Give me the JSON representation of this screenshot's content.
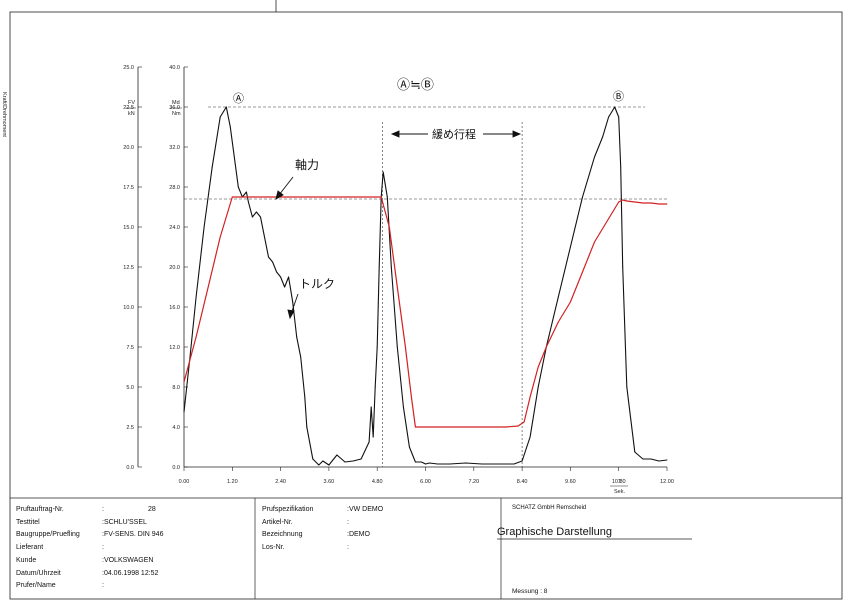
{
  "chart_data": {
    "type": "line",
    "x_ticks": [
      "0.00",
      "1.20",
      "2.40",
      "3.60",
      "4.80",
      "6.00",
      "7.20",
      "8.40",
      "9.60",
      "10.80",
      "12.00"
    ],
    "xlim": [
      0,
      12
    ],
    "left_axis_ticks": [
      "0.0",
      "2.5",
      "5.0",
      "7.5",
      "10.0",
      "12.5",
      "15.0",
      "17.5",
      "20.0",
      "22.5",
      "25.0"
    ],
    "left_ylim": [
      0,
      25
    ],
    "left_unit": "FV",
    "left_unit2": "kN",
    "right_axis_ticks": [
      "0.0",
      "4.0",
      "8.0",
      "12.0",
      "16.0",
      "20.0",
      "24.0",
      "28.0",
      "32.0",
      "36.0",
      "40.0"
    ],
    "right_ylim": [
      0,
      40
    ],
    "right_unit": "Md",
    "right_unit2": "Nm",
    "x_unit": "T",
    "x_unit2": "Sek.",
    "vertical_side_label": "Kraft/Drehmoment",
    "series": [
      {
        "name": "トルク",
        "color": "#111111",
        "axis": "right",
        "x": [
          0.0,
          0.15,
          0.3,
          0.5,
          0.7,
          0.9,
          1.05,
          1.15,
          1.25,
          1.35,
          1.45,
          1.55,
          1.6,
          1.7,
          1.8,
          1.9,
          2.0,
          2.1,
          2.2,
          2.3,
          2.4,
          2.5,
          2.6,
          2.7,
          2.8,
          2.9,
          3.0,
          3.05,
          3.2,
          3.35,
          3.45,
          3.6,
          3.8,
          4.0,
          4.2,
          4.4,
          4.6,
          4.65,
          4.7,
          4.75,
          4.8,
          4.85,
          4.9,
          4.95,
          5.05,
          5.15,
          5.3,
          5.45,
          5.6,
          5.75,
          5.9,
          6.0,
          6.1,
          6.3,
          6.6,
          7.0,
          7.4,
          7.8,
          8.2,
          8.4,
          8.6,
          8.8,
          9.0,
          9.3,
          9.6,
          9.9,
          10.2,
          10.4,
          10.55,
          10.7,
          10.8,
          10.85,
          10.9,
          11.0,
          11.2,
          11.4,
          11.6,
          11.8,
          12.0
        ],
        "y": [
          5.5,
          11,
          17,
          24,
          30,
          35,
          36.0,
          34,
          31,
          28,
          27,
          27.5,
          26.5,
          25,
          25.5,
          25,
          23,
          21,
          20.5,
          19.5,
          19,
          18,
          19,
          16.5,
          13,
          11,
          7,
          4,
          0.8,
          0.2,
          0.6,
          0.2,
          1.2,
          0.5,
          0.6,
          0.8,
          2.5,
          6,
          3,
          8,
          12,
          20,
          27,
          29.5,
          27,
          20,
          12,
          6,
          2,
          0.5,
          0.5,
          0.3,
          0.4,
          0.3,
          0.3,
          0.4,
          0.3,
          0.3,
          0.3,
          0.6,
          3,
          8,
          12,
          17,
          22,
          27,
          31,
          33,
          35,
          36,
          35,
          30,
          20,
          8,
          1.5,
          0.8,
          0.8,
          0.6,
          0.7
        ]
      },
      {
        "name": "軸力",
        "color": "#d42020",
        "axis": "right",
        "x": [
          0.0,
          0.3,
          0.6,
          0.9,
          1.2,
          1.35,
          1.6,
          2.0,
          2.5,
          3.0,
          3.5,
          4.0,
          4.5,
          4.9,
          5.1,
          5.3,
          5.5,
          5.65,
          5.75,
          5.8,
          6.0,
          6.5,
          7.0,
          7.5,
          8.0,
          8.3,
          8.45,
          8.6,
          8.8,
          9.0,
          9.3,
          9.6,
          9.9,
          10.2,
          10.5,
          10.8,
          10.9,
          11.0,
          11.2,
          11.4,
          11.6,
          11.8,
          12.0
        ],
        "y": [
          8.5,
          13,
          18,
          23,
          27,
          27,
          27,
          27,
          27,
          27,
          27,
          27,
          27,
          27,
          24,
          18,
          12,
          7,
          4,
          4,
          4,
          4,
          4,
          4,
          4,
          4.1,
          4.5,
          7,
          10,
          12,
          14.5,
          16.5,
          19.5,
          22.5,
          24.5,
          26.5,
          26.7,
          26.6,
          26.5,
          26.4,
          26.4,
          26.3,
          26.3
        ]
      }
    ],
    "annotations": {
      "torque_label": "トルク",
      "force_label": "軸力",
      "loosen_label": "緩め行程",
      "peak_a": "Ⓐ",
      "peak_b": "Ⓑ",
      "peak_eq": "Ⓐ≒Ⓑ"
    },
    "reference_lines": {
      "peak_level_right": 36.0,
      "force_level_right": 26.8,
      "dividers_x": [
        4.93,
        8.4
      ]
    }
  },
  "footer": {
    "fields": [
      {
        "label": "Pruftauftrag-Nr.",
        "colon": ":",
        "value": "28"
      },
      {
        "label": "Testtitel",
        "colon": "",
        "value": ":SCHLU'SSEL"
      },
      {
        "label": "Baugruppe/Pruefling",
        "colon": "",
        "value": ":FV-SENS. DIN 946"
      },
      {
        "label": "Lieferant",
        "colon": ":",
        "value": ""
      },
      {
        "label": "Kunde",
        "colon": "",
        "value": ":VOLKSWAGEN"
      },
      {
        "label": "Datum/Uhrzeit",
        "colon": "",
        "value": ":04.06.1998 12:52"
      },
      {
        "label": "Prufer/Name",
        "colon": ":",
        "value": ""
      }
    ],
    "spec_fields": [
      {
        "label": "Prufspezifikation",
        "value": ":VW DEMO"
      },
      {
        "label": "Artikel-Nr.",
        "value": ":"
      },
      {
        "label": "Bezeichnung",
        "value": ":DEMO"
      },
      {
        "label": "Los-Nr.",
        "value": ":"
      }
    ],
    "company": "SCHATZ GmbH Remscheid",
    "doc_title": "Graphische Darstellung",
    "measurement_label": "Messung",
    "measurement_value": ":  8"
  }
}
